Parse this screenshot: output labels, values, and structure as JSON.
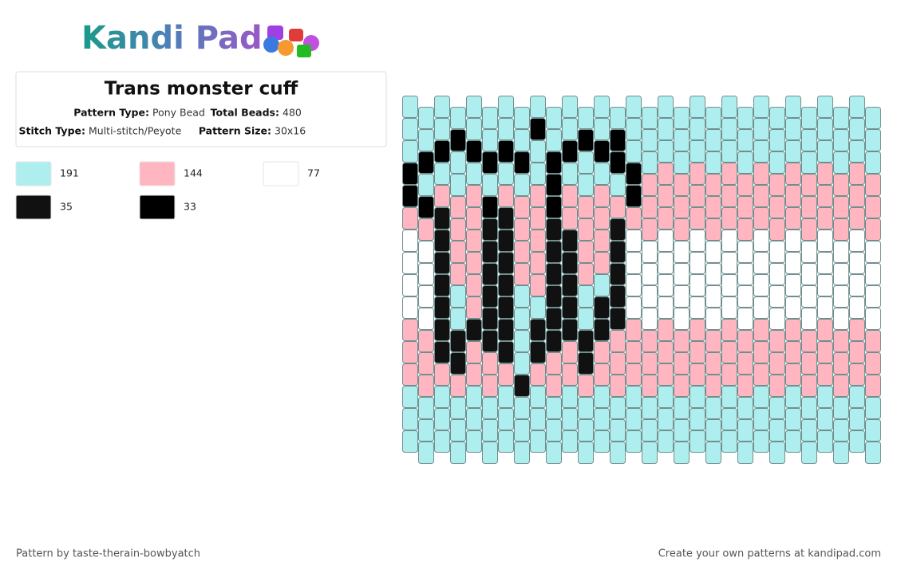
{
  "header": {
    "logo": "Kandi Pad"
  },
  "info": {
    "title": "Trans monster cuff",
    "fields": [
      {
        "label": "Pattern Type:",
        "value": "Pony Bead"
      },
      {
        "label": "Total Beads:",
        "value": "480"
      },
      {
        "label": "Stitch Type:",
        "value": "Multi-stitch/Peyote"
      },
      {
        "label": "Pattern Size:",
        "value": "30x16"
      }
    ]
  },
  "palette": [
    {
      "color": "#aeeeee",
      "count": 191
    },
    {
      "color": "#ffb6c1",
      "count": 144
    },
    {
      "color": "#ffffff",
      "count": 77
    },
    {
      "color": "#111111",
      "count": 35
    },
    {
      "color": "#000000",
      "count": 33
    }
  ],
  "beads": {
    "rows": [
      "000000000000000000000000000000",
      "000400004004040000000000000000",
      "044044440440440000000000000000",
      "400000000400004111111111111111",
      "441114111411114111111111111111",
      "113113311311131111111111111111",
      "223113311331132222222222222222",
      "223113311331132222222222222222",
      "223013301330032222222222222222",
      "223013300330332222222222222222",
      "113333303333311111111111111111",
      "113311303113111111111111111111",
      "111111131111111111111111111111",
      "000000000000000000000000000000",
      "000000000000000000000000000000",
      "000000000000000000000000000000"
    ]
  },
  "footer": {
    "left": "Pattern by taste-therain-bowbyatch",
    "right": "Create your own patterns at kandipad.com"
  }
}
